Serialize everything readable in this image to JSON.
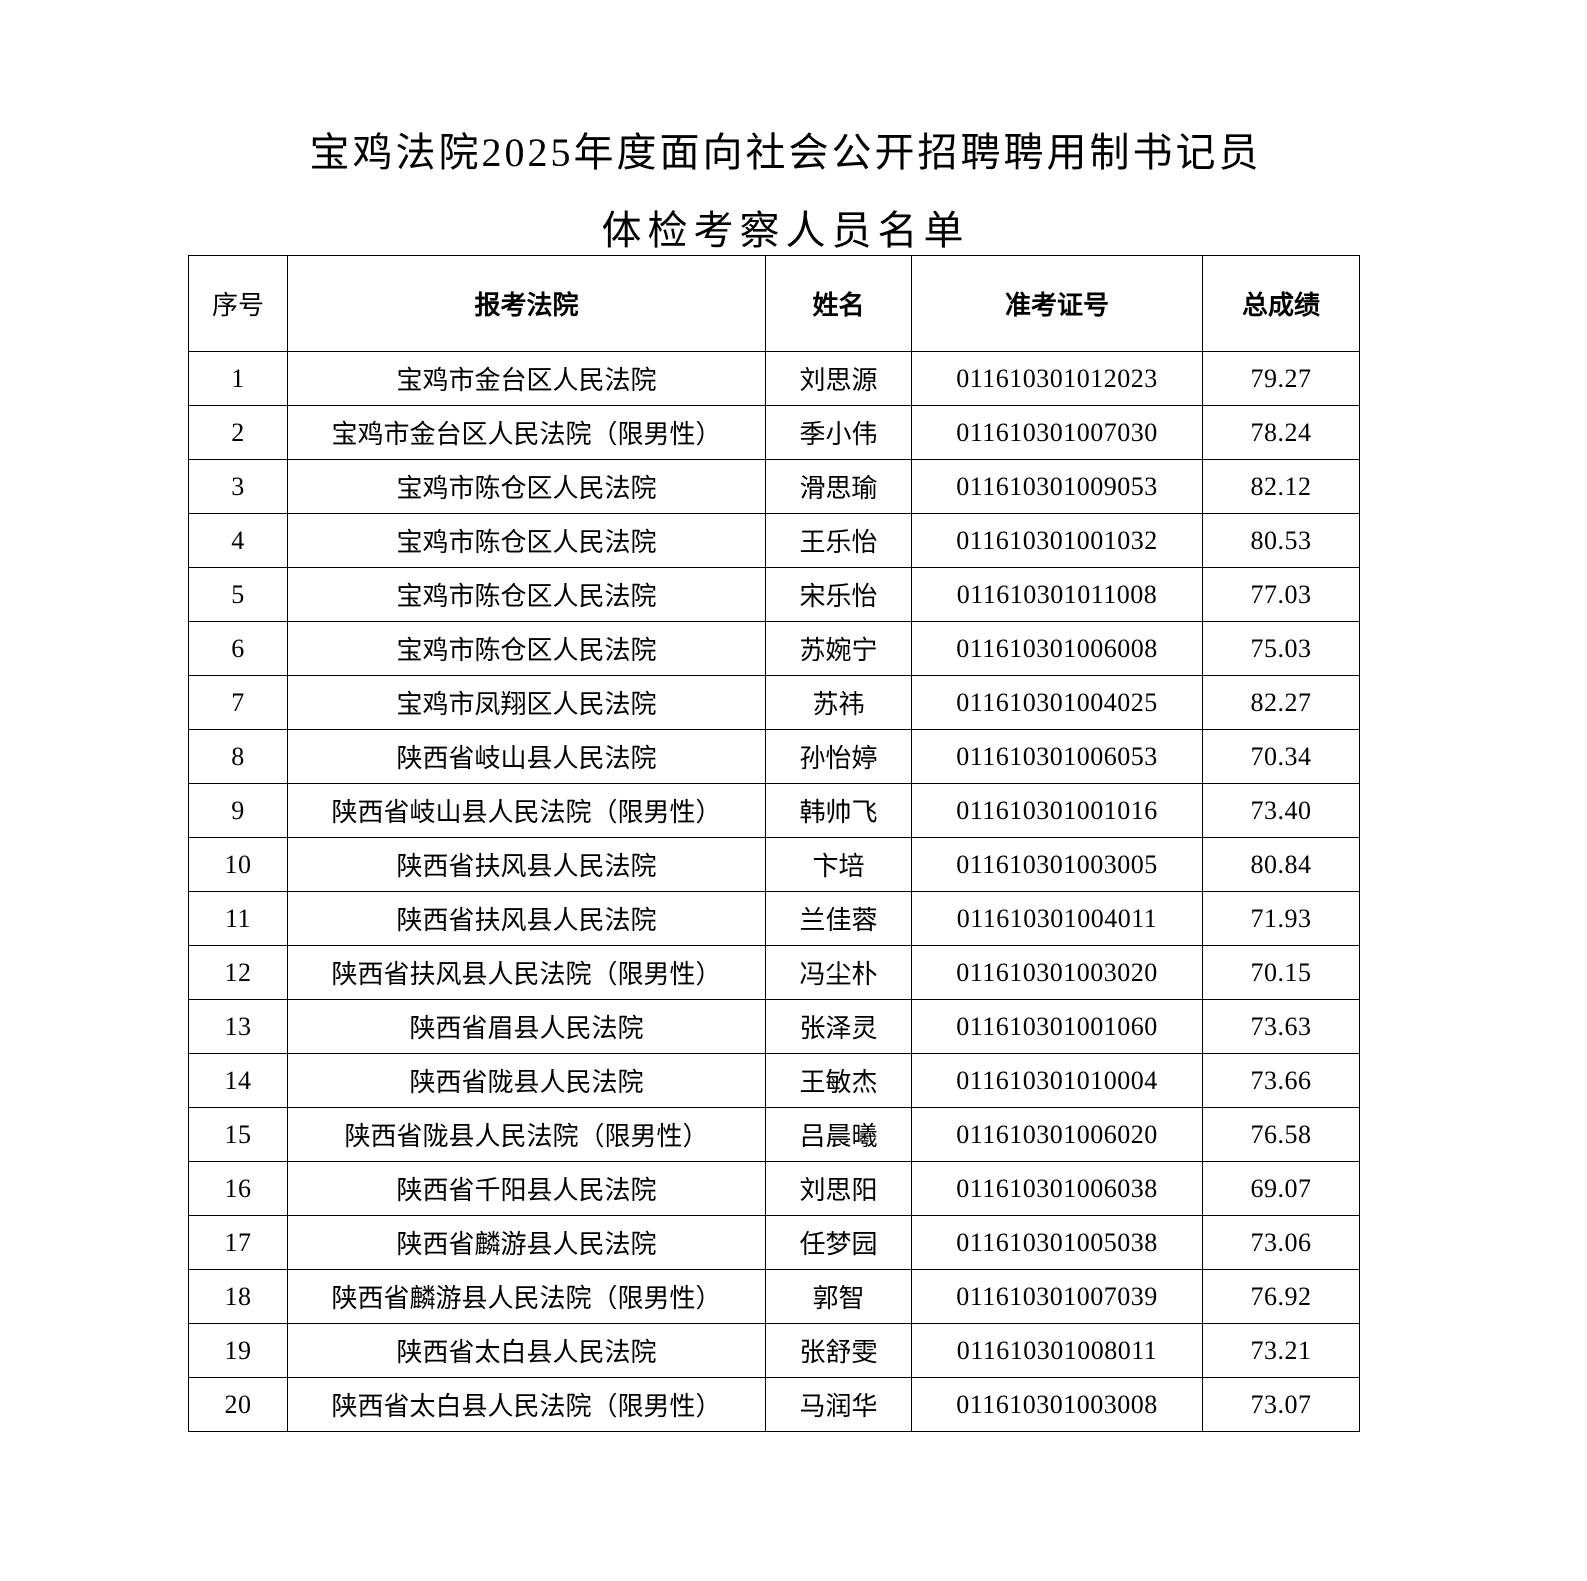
{
  "title": {
    "line1": "宝鸡法院2025年度面向社会公开招聘聘用制书记员",
    "line2": "体检考察人员名单"
  },
  "table": {
    "headers": [
      "序号",
      "报考法院",
      "姓名",
      "准考证号",
      "总成绩"
    ],
    "rows": [
      [
        "1",
        "宝鸡市金台区人民法院",
        "刘思源",
        "011610301012023",
        "79.27"
      ],
      [
        "2",
        "宝鸡市金台区人民法院（限男性）",
        "季小伟",
        "011610301007030",
        "78.24"
      ],
      [
        "3",
        "宝鸡市陈仓区人民法院",
        "滑思瑜",
        "011610301009053",
        "82.12"
      ],
      [
        "4",
        "宝鸡市陈仓区人民法院",
        "王乐怡",
        "011610301001032",
        "80.53"
      ],
      [
        "5",
        "宝鸡市陈仓区人民法院",
        "宋乐怡",
        "011610301011008",
        "77.03"
      ],
      [
        "6",
        "宝鸡市陈仓区人民法院",
        "苏婉宁",
        "011610301006008",
        "75.03"
      ],
      [
        "7",
        "宝鸡市凤翔区人民法院",
        "苏祎",
        "011610301004025",
        "82.27"
      ],
      [
        "8",
        "陕西省岐山县人民法院",
        "孙怡婷",
        "011610301006053",
        "70.34"
      ],
      [
        "9",
        "陕西省岐山县人民法院（限男性）",
        "韩帅飞",
        "011610301001016",
        "73.40"
      ],
      [
        "10",
        "陕西省扶风县人民法院",
        "卞培",
        "011610301003005",
        "80.84"
      ],
      [
        "11",
        "陕西省扶风县人民法院",
        "兰佳蓉",
        "011610301004011",
        "71.93"
      ],
      [
        "12",
        "陕西省扶风县人民法院（限男性）",
        "冯尘朴",
        "011610301003020",
        "70.15"
      ],
      [
        "13",
        "陕西省眉县人民法院",
        "张泽灵",
        "011610301001060",
        "73.63"
      ],
      [
        "14",
        "陕西省陇县人民法院",
        "王敏杰",
        "011610301010004",
        "73.66"
      ],
      [
        "15",
        "陕西省陇县人民法院（限男性）",
        "吕晨曦",
        "011610301006020",
        "76.58"
      ],
      [
        "16",
        "陕西省千阳县人民法院",
        "刘思阳",
        "011610301006038",
        "69.07"
      ],
      [
        "17",
        "陕西省麟游县人民法院",
        "任梦园",
        "011610301005038",
        "73.06"
      ],
      [
        "18",
        "陕西省麟游县人民法院（限男性）",
        "郭智",
        "011610301007039",
        "76.92"
      ],
      [
        "19",
        "陕西省太白县人民法院",
        "张舒雯",
        "011610301008011",
        "73.21"
      ],
      [
        "20",
        "陕西省太白县人民法院（限男性）",
        "马润华",
        "011610301003008",
        "73.07"
      ]
    ]
  }
}
